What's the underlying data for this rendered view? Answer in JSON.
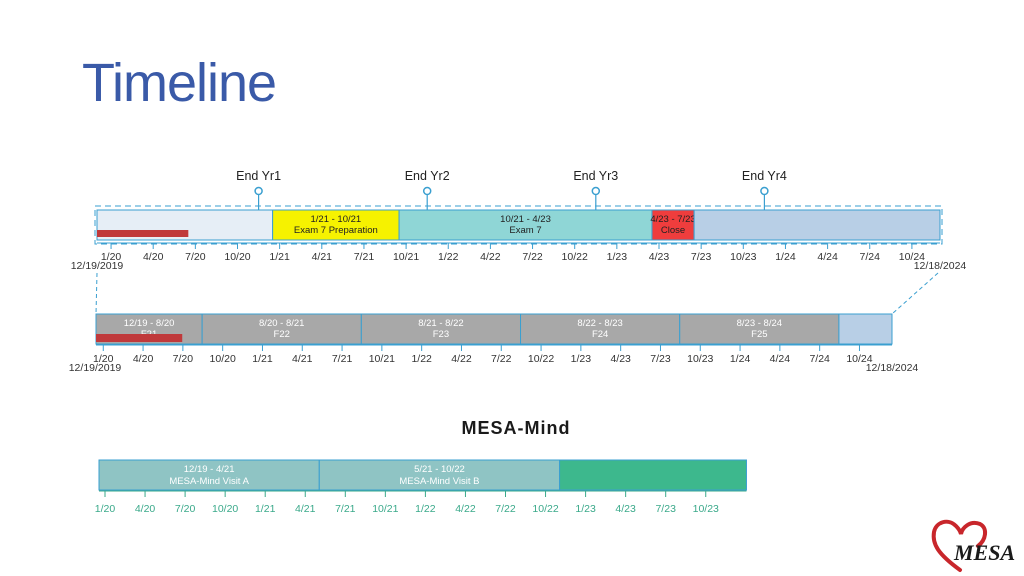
{
  "title": "Timeline",
  "colors": {
    "accent": "#3a9fd0",
    "track_fill": "#e6eef6",
    "prep": "#f6f200",
    "exam": "#8fd6d6",
    "close": "#ef3d3d",
    "grey_seg": "#a8a8a8",
    "light_blue": "#b8cfe6",
    "red_bar": "#c0393b",
    "mm_seg": "#8fc4c4",
    "mm_green": "#3db88d",
    "tick_green": "#3aa98a",
    "tick_dark": "#333333"
  },
  "top_timeline": {
    "end_markers": [
      {
        "label": "End Yr1",
        "month": 12
      },
      {
        "label": "End Yr2",
        "month": 24
      },
      {
        "label": "End Yr3",
        "month": 36
      },
      {
        "label": "End Yr4",
        "month": 48
      }
    ],
    "segments": [
      {
        "line1": "",
        "line2": "",
        "start": 0,
        "end": 12.5,
        "color": "#e6eef6"
      },
      {
        "line1": "1/21 - 10/21",
        "line2": "Exam 7 Preparation",
        "start": 12.5,
        "end": 21.5,
        "color": "#f6f200"
      },
      {
        "line1": "10/21 - 4/23",
        "line2": "Exam 7",
        "start": 21.5,
        "end": 39.5,
        "color": "#8fd6d6"
      },
      {
        "line1": "4/23 - 7/23",
        "line2": "Close",
        "start": 39.5,
        "end": 42.5,
        "color": "#ef3d3d"
      },
      {
        "line1": "",
        "line2": "",
        "start": 42.5,
        "end": 60,
        "color": "#b8cfe6"
      }
    ],
    "red_bar": {
      "start": 0,
      "end": 6.5
    },
    "ticks": [
      "1/20",
      "4/20",
      "7/20",
      "10/20",
      "1/21",
      "4/21",
      "7/21",
      "10/21",
      "1/22",
      "4/22",
      "7/22",
      "10/22",
      "1/23",
      "4/23",
      "7/23",
      "10/23",
      "1/24",
      "4/24",
      "7/24",
      "10/24"
    ],
    "start_date": "12/19/2019",
    "end_date": "12/18/2024"
  },
  "mid_timeline": {
    "segments": [
      {
        "line1": "12/19 - 8/20",
        "line2": "F21",
        "start": 0,
        "end": 8,
        "color": "#a8a8a8"
      },
      {
        "line1": "8/20 - 8/21",
        "line2": "F22",
        "start": 8,
        "end": 20,
        "color": "#a8a8a8"
      },
      {
        "line1": "8/21 - 8/22",
        "line2": "F23",
        "start": 20,
        "end": 32,
        "color": "#a8a8a8"
      },
      {
        "line1": "8/22 - 8/23",
        "line2": "F24",
        "start": 32,
        "end": 44,
        "color": "#a8a8a8"
      },
      {
        "line1": "8/23 - 8/24",
        "line2": "F25",
        "start": 44,
        "end": 56,
        "color": "#a8a8a8"
      },
      {
        "line1": "",
        "line2": "",
        "start": 56,
        "end": 60,
        "color": "#b8cfe6"
      }
    ],
    "red_bar": {
      "start": 0,
      "end": 6.5
    },
    "ticks": [
      "1/20",
      "4/20",
      "7/20",
      "10/20",
      "1/21",
      "4/21",
      "7/21",
      "10/21",
      "1/22",
      "4/22",
      "7/22",
      "10/22",
      "1/23",
      "4/23",
      "7/23",
      "10/23",
      "1/24",
      "4/24",
      "7/24",
      "10/24"
    ],
    "start_date": "12/19/2019",
    "end_date": "12/18/2024"
  },
  "mesa_mind": {
    "title": "MESA-Mind",
    "segments": [
      {
        "line1": "12/19 - 4/21",
        "line2": "MESA-Mind Visit A",
        "start": 0,
        "end": 16.5,
        "color": "#8fc4c4"
      },
      {
        "line1": "5/21 - 10/22",
        "line2": "MESA-Mind Visit B",
        "start": 16.5,
        "end": 34.5,
        "color": "#8fc4c4"
      },
      {
        "line1": "",
        "line2": "",
        "start": 34.5,
        "end": 48.5,
        "color": "#3db88d"
      }
    ],
    "ticks": [
      "1/20",
      "4/20",
      "7/20",
      "10/20",
      "1/21",
      "4/21",
      "7/21",
      "10/21",
      "1/22",
      "4/22",
      "7/22",
      "10/22",
      "1/23",
      "4/23",
      "7/23",
      "10/23"
    ]
  },
  "logo": {
    "text": "MESA"
  }
}
